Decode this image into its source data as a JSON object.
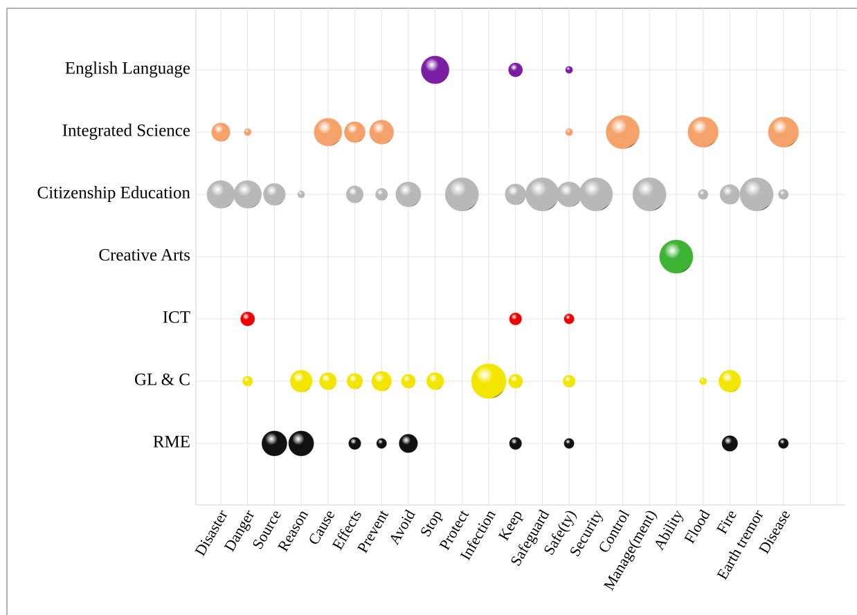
{
  "chart_data": {
    "type": "bubble",
    "categories": [
      "Disaster",
      "Danger",
      "Source",
      "Reason",
      "Cause",
      "Effects",
      "Prevent",
      "Avoid",
      "Stop",
      "Protect",
      "Infection",
      "Keep",
      "Safeguard",
      "Safe(ty)",
      "Security",
      "Control",
      "Manage(ment)",
      "Ability",
      "Flood",
      "Fire",
      "Earth tremor",
      "Disease"
    ],
    "grid": true,
    "series": [
      {
        "name": "English Language",
        "color": "#7b1fa2",
        "values": [
          null,
          null,
          null,
          null,
          null,
          null,
          null,
          null,
          16,
          null,
          null,
          4,
          null,
          1,
          null,
          null,
          null,
          null,
          null,
          null,
          null,
          null
        ]
      },
      {
        "name": "Integrated Science",
        "color": "#f4a26a",
        "values": [
          7,
          1,
          null,
          null,
          16,
          9,
          12,
          null,
          null,
          null,
          null,
          null,
          null,
          1,
          null,
          23,
          null,
          null,
          19,
          null,
          null,
          19
        ]
      },
      {
        "name": "Citizenship Education",
        "color": "#b8b8b8",
        "values": [
          16,
          16,
          10,
          1,
          null,
          6,
          3,
          13,
          null,
          23,
          null,
          9,
          23,
          13,
          23,
          null,
          23,
          null,
          2,
          8,
          23,
          2
        ]
      },
      {
        "name": "Creative Arts",
        "color": "#3cb332",
        "values": [
          null,
          null,
          null,
          null,
          null,
          null,
          null,
          null,
          null,
          null,
          null,
          null,
          null,
          null,
          null,
          null,
          null,
          23,
          null,
          null,
          null,
          null
        ]
      },
      {
        "name": "ICT",
        "color": "#ee0000",
        "values": [
          null,
          4,
          null,
          null,
          null,
          null,
          null,
          null,
          null,
          null,
          null,
          3,
          null,
          2,
          null,
          null,
          null,
          null,
          null,
          null,
          null,
          null
        ]
      },
      {
        "name": "GL & C",
        "color": "#f2e600",
        "values": [
          null,
          2,
          null,
          10,
          6,
          5,
          8,
          4,
          6,
          null,
          25,
          4,
          null,
          3,
          null,
          null,
          null,
          null,
          1,
          10,
          null,
          null
        ]
      },
      {
        "name": "RME",
        "color": "#111111",
        "values": [
          null,
          null,
          13,
          13,
          null,
          3,
          2,
          7,
          null,
          null,
          null,
          3,
          null,
          2,
          null,
          null,
          null,
          null,
          null,
          5,
          null,
          2
        ]
      }
    ]
  }
}
